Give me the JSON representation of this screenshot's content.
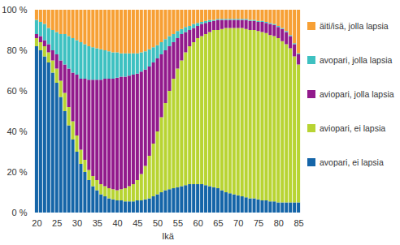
{
  "chart_data": {
    "type": "bar",
    "stacked": true,
    "xlabel": "Ikä",
    "categories": [
      20,
      21,
      22,
      23,
      24,
      25,
      26,
      27,
      28,
      29,
      30,
      31,
      32,
      33,
      34,
      35,
      36,
      37,
      38,
      39,
      40,
      41,
      42,
      43,
      44,
      45,
      46,
      47,
      48,
      49,
      50,
      51,
      52,
      53,
      54,
      55,
      56,
      57,
      58,
      59,
      60,
      61,
      62,
      63,
      64,
      65,
      66,
      67,
      68,
      69,
      70,
      71,
      72,
      73,
      74,
      75,
      76,
      77,
      78,
      79,
      80,
      81,
      82,
      83,
      84,
      85
    ],
    "xticks": [
      20,
      25,
      30,
      35,
      40,
      45,
      50,
      55,
      60,
      65,
      70,
      75,
      80,
      85
    ],
    "ylim": [
      0,
      100
    ],
    "yticks": [
      {
        "value": 0,
        "label": "0 %"
      },
      {
        "value": 20,
        "label": "20 %"
      },
      {
        "value": 40,
        "label": "40 %"
      },
      {
        "value": 60,
        "label": "60 %"
      },
      {
        "value": 80,
        "label": "80 %"
      },
      {
        "value": 100,
        "label": "100 %"
      }
    ],
    "grid": false,
    "legend": "right",
    "series": [
      {
        "name": "avopari, ei lapsia",
        "color": "#1565a8",
        "values": [
          82,
          80,
          77,
          74,
          69,
          64,
          57,
          50,
          43,
          36,
          30,
          24,
          20,
          16,
          13,
          11,
          9,
          8,
          7,
          6.5,
          6,
          6,
          5.5,
          5.5,
          5.5,
          6,
          6,
          6.5,
          7,
          8,
          9,
          10,
          11,
          11.5,
          12,
          12.5,
          13,
          13.5,
          14,
          14,
          14,
          14,
          13.5,
          13,
          12.5,
          12,
          11,
          10,
          9.5,
          9,
          8.5,
          8,
          7.5,
          7,
          7,
          6.5,
          6,
          6,
          5.5,
          5.5,
          5,
          5,
          5,
          5,
          5,
          5
        ]
      },
      {
        "name": "aviopari, ei lapsia",
        "color": "#b8d433",
        "values": [
          4,
          4,
          5,
          5,
          6,
          7,
          8,
          9,
          9,
          9,
          8,
          7,
          6,
          5,
          5,
          5,
          5,
          5,
          5,
          5,
          5,
          5.5,
          6.5,
          7.5,
          8.5,
          10,
          13,
          16.5,
          21,
          26,
          31,
          37,
          43,
          48.5,
          54,
          58.5,
          62,
          65.5,
          68,
          70,
          72,
          73,
          74.5,
          76,
          77.5,
          78,
          79.5,
          81,
          81.5,
          82,
          82.5,
          83,
          83,
          83,
          83,
          83,
          83,
          82.5,
          82,
          81.5,
          81,
          79.5,
          78,
          76,
          72,
          68
        ]
      },
      {
        "name": "aviopari, jolla lapsia",
        "color": "#921a8c",
        "values": [
          2,
          3,
          3,
          4,
          5,
          7,
          10,
          14,
          19,
          24,
          30,
          35,
          40,
          44.5,
          47.5,
          49.5,
          51.5,
          53,
          54,
          54.5,
          55.5,
          55.5,
          55,
          54.5,
          54,
          52.5,
          50.5,
          47.5,
          44,
          40,
          36,
          31,
          26,
          22,
          18,
          15,
          13,
          10,
          8,
          7,
          6,
          6,
          5.5,
          5,
          4.5,
          5,
          4.5,
          4,
          4,
          4,
          4,
          4,
          4.5,
          4.5,
          4.5,
          4.5,
          5,
          5,
          5.5,
          5.5,
          5.5,
          6,
          6,
          6,
          6,
          5
        ]
      },
      {
        "name": "avopari, jolla lapsia",
        "color": "#3ec1c1",
        "values": [
          7,
          7,
          8,
          8,
          10,
          11,
          13,
          15,
          16,
          17,
          17,
          18,
          17,
          16.5,
          16,
          15.5,
          15,
          14,
          13.5,
          13,
          12.5,
          11.5,
          11.5,
          11,
          10.5,
          10,
          9.5,
          9,
          8.5,
          7.5,
          6.5,
          6,
          5.5,
          5,
          4,
          3.5,
          2.5,
          2.5,
          2,
          2,
          1.5,
          1,
          1,
          1,
          0.5,
          0.5,
          0.5,
          0.5,
          0.5,
          0.5,
          0.5,
          0.5,
          0.5,
          0.5,
          0.5,
          0.5,
          0.5,
          0.5,
          0.5,
          0.5,
          0.5,
          0.5,
          0.5,
          0.5,
          0.5,
          0.5
        ]
      },
      {
        "name": "äiti/isä, jolla lapsia",
        "color": "#f7a035",
        "values": [
          5,
          6,
          7,
          9,
          10,
          11,
          12,
          12,
          13,
          14,
          15,
          16,
          17,
          18,
          18.5,
          19,
          19.5,
          20,
          20.5,
          21,
          21,
          21.5,
          21.5,
          21.5,
          21.5,
          21.5,
          21,
          20.5,
          19.5,
          18.5,
          17.5,
          16,
          14.5,
          13,
          12,
          10.5,
          9.5,
          8.5,
          8,
          7,
          6.5,
          6,
          5.5,
          5,
          5,
          4.5,
          4.5,
          4.5,
          4.5,
          4.5,
          4.5,
          4.5,
          4.5,
          5,
          5,
          5.5,
          5.5,
          6,
          6.5,
          7,
          8,
          9,
          10.5,
          12.5,
          16.5,
          21.5
        ]
      }
    ]
  }
}
